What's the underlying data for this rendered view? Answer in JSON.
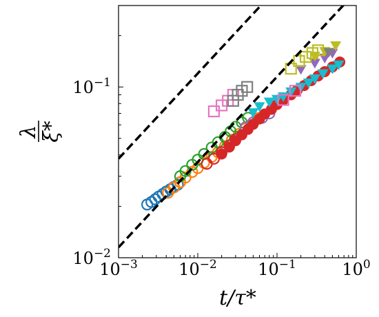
{
  "chart_data": {
    "type": "scatter",
    "xlabel": "t/τ*",
    "ylabel_numerator": "λ",
    "ylabel_denominator": "ξ*",
    "x_scale": "log",
    "y_scale": "log",
    "xlim": [
      0.001,
      1
    ],
    "ylim": [
      0.01,
      0.3
    ],
    "x_ticks": [
      {
        "value": 0.001,
        "base": "10",
        "exp": "−3"
      },
      {
        "value": 0.01,
        "base": "10",
        "exp": "−2"
      },
      {
        "value": 0.1,
        "base": "10",
        "exp": "−1"
      },
      {
        "value": 1,
        "base": "10",
        "exp": "0"
      }
    ],
    "y_ticks": [
      {
        "value": 0.01,
        "base": "10",
        "exp": "−2"
      },
      {
        "value": 0.1,
        "base": "10",
        "exp": "−1"
      }
    ],
    "grid": false,
    "legend": "none",
    "reference_lines": [
      {
        "style": "dashed",
        "color": "#000000",
        "slope": 0.5,
        "points": [
          [
            0.001,
            0.038
          ],
          [
            1,
            1.2
          ]
        ]
      },
      {
        "style": "dashed",
        "color": "#000000",
        "slope": 0.5,
        "points": [
          [
            0.001,
            0.0115
          ],
          [
            1,
            0.363
          ]
        ]
      }
    ],
    "series": [
      {
        "marker": "circle-open",
        "color": "#1f77b4",
        "points": [
          [
            0.0023,
            0.0205
          ],
          [
            0.0026,
            0.0212
          ],
          [
            0.0029,
            0.022
          ],
          [
            0.0032,
            0.0228
          ],
          [
            0.0036,
            0.0236
          ],
          [
            0.004,
            0.0244
          ],
          [
            0.0045,
            0.0252
          ],
          [
            0.005,
            0.026
          ],
          [
            0.0056,
            0.0268
          ]
        ]
      },
      {
        "marker": "circle-open",
        "color": "#ff7f0e",
        "points": [
          [
            0.0042,
            0.024
          ],
          [
            0.005,
            0.0258
          ],
          [
            0.006,
            0.0277
          ],
          [
            0.007,
            0.0295
          ],
          [
            0.0085,
            0.0318
          ],
          [
            0.01,
            0.0335
          ],
          [
            0.012,
            0.036
          ],
          [
            0.015,
            0.039
          ],
          [
            0.018,
            0.0415
          ],
          [
            0.022,
            0.045
          ],
          [
            0.027,
            0.049
          ],
          [
            0.033,
            0.053
          ],
          [
            0.04,
            0.057
          ],
          [
            0.05,
            0.062
          ],
          [
            0.06,
            0.066
          ]
        ]
      },
      {
        "marker": "circle-open",
        "color": "#2ca02c",
        "points": [
          [
            0.006,
            0.03
          ],
          [
            0.007,
            0.0322
          ],
          [
            0.0085,
            0.035
          ],
          [
            0.01,
            0.0375
          ],
          [
            0.012,
            0.0405
          ],
          [
            0.015,
            0.0442
          ],
          [
            0.018,
            0.0475
          ],
          [
            0.022,
            0.051
          ],
          [
            0.026,
            0.055
          ],
          [
            0.03,
            0.0585
          ],
          [
            0.036,
            0.062
          ],
          [
            0.043,
            0.066
          ]
        ]
      },
      {
        "marker": "circle-open",
        "color": "#d62728",
        "points": [
          [
            0.013,
            0.0355
          ],
          [
            0.016,
            0.038
          ],
          [
            0.02,
            0.0415
          ],
          [
            0.025,
            0.0455
          ],
          [
            0.03,
            0.0495
          ]
        ]
      },
      {
        "marker": "circle-open",
        "color": "#9467bd",
        "points": [
          [
            0.04,
            0.058
          ],
          [
            0.05,
            0.062
          ],
          [
            0.065,
            0.066
          ],
          [
            0.08,
            0.07
          ]
        ]
      },
      {
        "marker": "circle-filled",
        "color": "#d62728",
        "points": [
          [
            0.02,
            0.0405
          ],
          [
            0.025,
            0.0445
          ],
          [
            0.03,
            0.0485
          ],
          [
            0.036,
            0.0525
          ],
          [
            0.043,
            0.0565
          ],
          [
            0.05,
            0.0605
          ],
          [
            0.06,
            0.065
          ],
          [
            0.07,
            0.0695
          ],
          [
            0.085,
            0.074
          ],
          [
            0.1,
            0.079
          ],
          [
            0.12,
            0.084
          ],
          [
            0.15,
            0.09
          ],
          [
            0.18,
            0.096
          ],
          [
            0.22,
            0.102
          ],
          [
            0.27,
            0.109
          ],
          [
            0.33,
            0.116
          ],
          [
            0.4,
            0.123
          ],
          [
            0.5,
            0.131
          ],
          [
            0.62,
            0.14
          ]
        ]
      },
      {
        "marker": "triangle-down-filled",
        "color": "#17becf",
        "points": [
          [
            0.05,
            0.071
          ],
          [
            0.06,
            0.077
          ],
          [
            0.08,
            0.082
          ],
          [
            0.1,
            0.085
          ],
          [
            0.12,
            0.088
          ],
          [
            0.15,
            0.094
          ],
          [
            0.2,
            0.1
          ],
          [
            0.25,
            0.106
          ],
          [
            0.3,
            0.112
          ],
          [
            0.38,
            0.12
          ],
          [
            0.5,
            0.128
          ],
          [
            0.6,
            0.135
          ]
        ]
      },
      {
        "marker": "triangle-down-filled",
        "color": "#9467bd",
        "points": [
          [
            0.2,
            0.127
          ],
          [
            0.3,
            0.138
          ],
          [
            0.4,
            0.148
          ],
          [
            0.5,
            0.158
          ]
        ]
      },
      {
        "marker": "triangle-down-filled",
        "color": "#bcbd22",
        "points": [
          [
            0.3,
            0.152
          ],
          [
            0.4,
            0.162
          ],
          [
            0.55,
            0.175
          ]
        ]
      },
      {
        "marker": "triangle-down-filled",
        "color": "#7f7f7f",
        "points": [
          [
            0.45,
            0.16
          ]
        ]
      },
      {
        "marker": "square-open",
        "color": "#e377c2",
        "points": [
          [
            0.016,
            0.072
          ],
          [
            0.02,
            0.078
          ],
          [
            0.024,
            0.083
          ],
          [
            0.028,
            0.09
          ]
        ]
      },
      {
        "marker": "square-open",
        "color": "#7f7f7f",
        "points": [
          [
            0.028,
            0.083
          ],
          [
            0.032,
            0.09
          ],
          [
            0.036,
            0.095
          ],
          [
            0.042,
            0.1
          ]
        ]
      },
      {
        "marker": "square-open",
        "color": "#bcbd22",
        "points": [
          [
            0.15,
            0.128
          ],
          [
            0.19,
            0.142
          ],
          [
            0.23,
            0.15
          ],
          [
            0.28,
            0.158
          ],
          [
            0.33,
            0.164
          ]
        ]
      },
      {
        "marker": "square-open",
        "color": "#e377c2",
        "points": [
          [
            0.12,
            0.084
          ],
          [
            0.17,
            0.095
          ]
        ]
      }
    ]
  }
}
